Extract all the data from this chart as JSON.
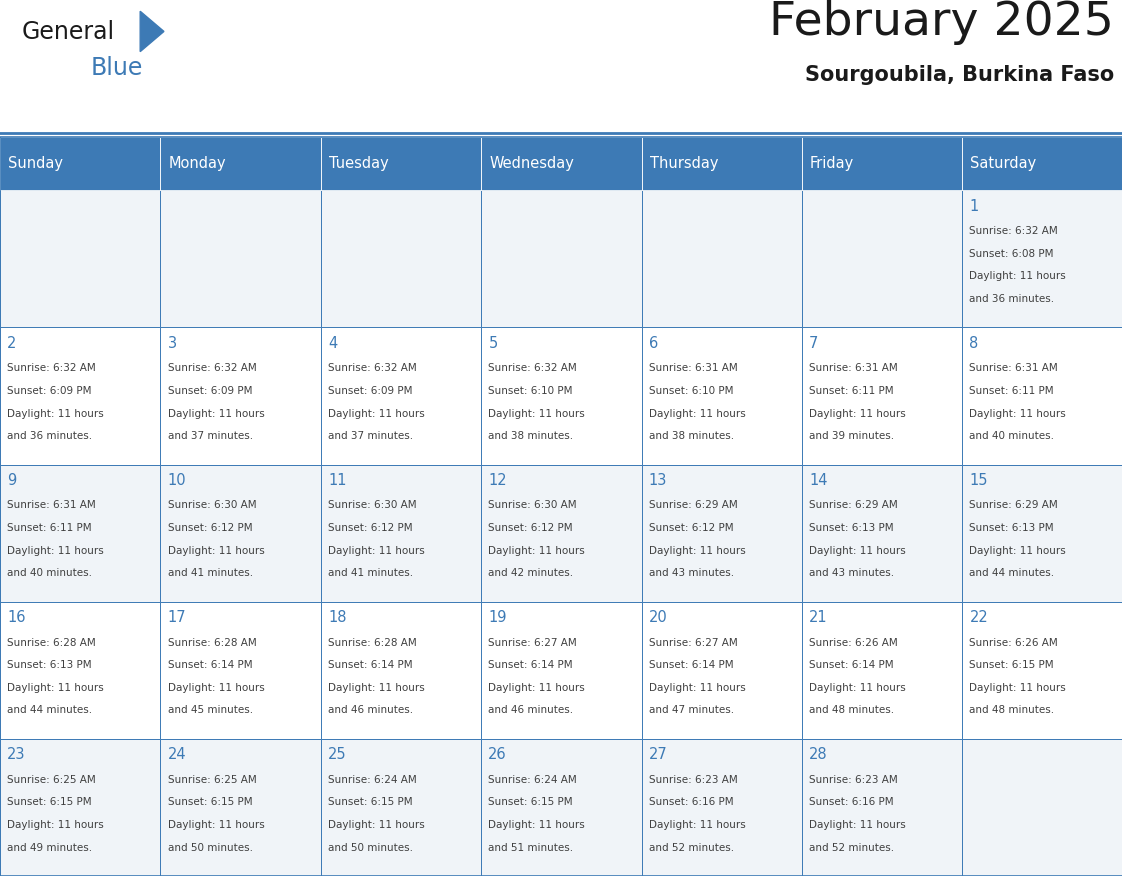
{
  "title": "February 2025",
  "subtitle": "Sourgoubila, Burkina Faso",
  "days_of_week": [
    "Sunday",
    "Monday",
    "Tuesday",
    "Wednesday",
    "Thursday",
    "Friday",
    "Saturday"
  ],
  "header_bg_color": "#3d7ab5",
  "header_text_color": "#ffffff",
  "cell_bg_light": "#f0f4f8",
  "cell_bg_white": "#ffffff",
  "day_number_color": "#3d7ab5",
  "text_color": "#404040",
  "border_color": "#3d7ab5",
  "logo_general_color": "#1a1a1a",
  "logo_blue_color": "#3d7ab5",
  "title_color": "#1a1a1a",
  "subtitle_color": "#1a1a1a",
  "calendar_data": [
    [
      null,
      null,
      null,
      null,
      null,
      null,
      1
    ],
    [
      2,
      3,
      4,
      5,
      6,
      7,
      8
    ],
    [
      9,
      10,
      11,
      12,
      13,
      14,
      15
    ],
    [
      16,
      17,
      18,
      19,
      20,
      21,
      22
    ],
    [
      23,
      24,
      25,
      26,
      27,
      28,
      null
    ]
  ],
  "sun_data": {
    "1": {
      "sunrise": "6:32 AM",
      "sunset": "6:08 PM",
      "daylight": "11 hours and 36 minutes."
    },
    "2": {
      "sunrise": "6:32 AM",
      "sunset": "6:09 PM",
      "daylight": "11 hours and 36 minutes."
    },
    "3": {
      "sunrise": "6:32 AM",
      "sunset": "6:09 PM",
      "daylight": "11 hours and 37 minutes."
    },
    "4": {
      "sunrise": "6:32 AM",
      "sunset": "6:09 PM",
      "daylight": "11 hours and 37 minutes."
    },
    "5": {
      "sunrise": "6:32 AM",
      "sunset": "6:10 PM",
      "daylight": "11 hours and 38 minutes."
    },
    "6": {
      "sunrise": "6:31 AM",
      "sunset": "6:10 PM",
      "daylight": "11 hours and 38 minutes."
    },
    "7": {
      "sunrise": "6:31 AM",
      "sunset": "6:11 PM",
      "daylight": "11 hours and 39 minutes."
    },
    "8": {
      "sunrise": "6:31 AM",
      "sunset": "6:11 PM",
      "daylight": "11 hours and 40 minutes."
    },
    "9": {
      "sunrise": "6:31 AM",
      "sunset": "6:11 PM",
      "daylight": "11 hours and 40 minutes."
    },
    "10": {
      "sunrise": "6:30 AM",
      "sunset": "6:12 PM",
      "daylight": "11 hours and 41 minutes."
    },
    "11": {
      "sunrise": "6:30 AM",
      "sunset": "6:12 PM",
      "daylight": "11 hours and 41 minutes."
    },
    "12": {
      "sunrise": "6:30 AM",
      "sunset": "6:12 PM",
      "daylight": "11 hours and 42 minutes."
    },
    "13": {
      "sunrise": "6:29 AM",
      "sunset": "6:12 PM",
      "daylight": "11 hours and 43 minutes."
    },
    "14": {
      "sunrise": "6:29 AM",
      "sunset": "6:13 PM",
      "daylight": "11 hours and 43 minutes."
    },
    "15": {
      "sunrise": "6:29 AM",
      "sunset": "6:13 PM",
      "daylight": "11 hours and 44 minutes."
    },
    "16": {
      "sunrise": "6:28 AM",
      "sunset": "6:13 PM",
      "daylight": "11 hours and 44 minutes."
    },
    "17": {
      "sunrise": "6:28 AM",
      "sunset": "6:14 PM",
      "daylight": "11 hours and 45 minutes."
    },
    "18": {
      "sunrise": "6:28 AM",
      "sunset": "6:14 PM",
      "daylight": "11 hours and 46 minutes."
    },
    "19": {
      "sunrise": "6:27 AM",
      "sunset": "6:14 PM",
      "daylight": "11 hours and 46 minutes."
    },
    "20": {
      "sunrise": "6:27 AM",
      "sunset": "6:14 PM",
      "daylight": "11 hours and 47 minutes."
    },
    "21": {
      "sunrise": "6:26 AM",
      "sunset": "6:14 PM",
      "daylight": "11 hours and 48 minutes."
    },
    "22": {
      "sunrise": "6:26 AM",
      "sunset": "6:15 PM",
      "daylight": "11 hours and 48 minutes."
    },
    "23": {
      "sunrise": "6:25 AM",
      "sunset": "6:15 PM",
      "daylight": "11 hours and 49 minutes."
    },
    "24": {
      "sunrise": "6:25 AM",
      "sunset": "6:15 PM",
      "daylight": "11 hours and 50 minutes."
    },
    "25": {
      "sunrise": "6:24 AM",
      "sunset": "6:15 PM",
      "daylight": "11 hours and 50 minutes."
    },
    "26": {
      "sunrise": "6:24 AM",
      "sunset": "6:15 PM",
      "daylight": "11 hours and 51 minutes."
    },
    "27": {
      "sunrise": "6:23 AM",
      "sunset": "6:16 PM",
      "daylight": "11 hours and 52 minutes."
    },
    "28": {
      "sunrise": "6:23 AM",
      "sunset": "6:16 PM",
      "daylight": "11 hours and 52 minutes."
    }
  }
}
